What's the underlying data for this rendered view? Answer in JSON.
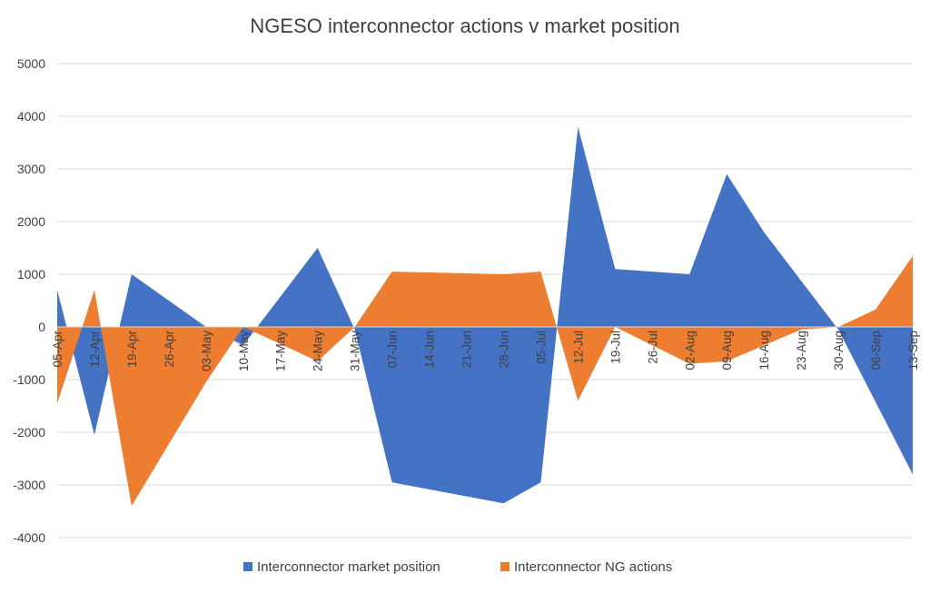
{
  "chart_data": {
    "type": "area",
    "title": "NGESO interconnector actions v market position",
    "xlabel": "",
    "ylabel": "",
    "ylim": [
      -4000,
      5000
    ],
    "yticks": [
      5000,
      4000,
      3000,
      2000,
      1000,
      0,
      -1000,
      -2000,
      -3000,
      -4000
    ],
    "grid": true,
    "legend_position": "bottom",
    "x_range_days": [
      0,
      161
    ],
    "tick_labels": [
      "05-Apr",
      "12-Apr",
      "19-Apr",
      "26-Apr",
      "03-May",
      "10-May",
      "17-May",
      "24-May",
      "31-May",
      "07-Jun",
      "14-Jun",
      "21-Jun",
      "28-Jun",
      "05-Jul",
      "12-Jul",
      "19-Jul",
      "26-Jul",
      "02-Aug",
      "09-Aug",
      "16-Aug",
      "23-Aug",
      "30-Aug",
      "06-Sep",
      "13-Sep"
    ],
    "series": [
      {
        "name": "Interconnector market position",
        "color": "#4472C4",
        "points": [
          {
            "x": 0,
            "y": 700
          },
          {
            "x": 7,
            "y": -2050
          },
          {
            "x": 14,
            "y": 1000
          },
          {
            "x": 28,
            "y": 0
          },
          {
            "x": 35,
            "y": -350
          },
          {
            "x": 49,
            "y": 1500
          },
          {
            "x": 56,
            "y": -50
          },
          {
            "x": 63,
            "y": -2950
          },
          {
            "x": 84,
            "y": -3350
          },
          {
            "x": 91,
            "y": -2950
          },
          {
            "x": 98,
            "y": 3800
          },
          {
            "x": 105,
            "y": 1100
          },
          {
            "x": 119,
            "y": 1000
          },
          {
            "x": 126,
            "y": 2900
          },
          {
            "x": 133,
            "y": 1800
          },
          {
            "x": 147,
            "y": -50
          },
          {
            "x": 161,
            "y": -2800
          }
        ]
      },
      {
        "name": "Interconnector NG actions",
        "color": "#ED7D31",
        "points": [
          {
            "x": 0,
            "y": -1450
          },
          {
            "x": 7,
            "y": 700
          },
          {
            "x": 14,
            "y": -3400
          },
          {
            "x": 28,
            "y": -1050
          },
          {
            "x": 35,
            "y": 0
          },
          {
            "x": 49,
            "y": -650
          },
          {
            "x": 56,
            "y": 0
          },
          {
            "x": 63,
            "y": 1050
          },
          {
            "x": 84,
            "y": 1000
          },
          {
            "x": 91,
            "y": 1050
          },
          {
            "x": 98,
            "y": -1400
          },
          {
            "x": 105,
            "y": 0
          },
          {
            "x": 119,
            "y": -700
          },
          {
            "x": 126,
            "y": -650
          },
          {
            "x": 140,
            "y": -50
          },
          {
            "x": 147,
            "y": 0
          },
          {
            "x": 154,
            "y": 330
          },
          {
            "x": 161,
            "y": 1350
          }
        ]
      }
    ]
  }
}
